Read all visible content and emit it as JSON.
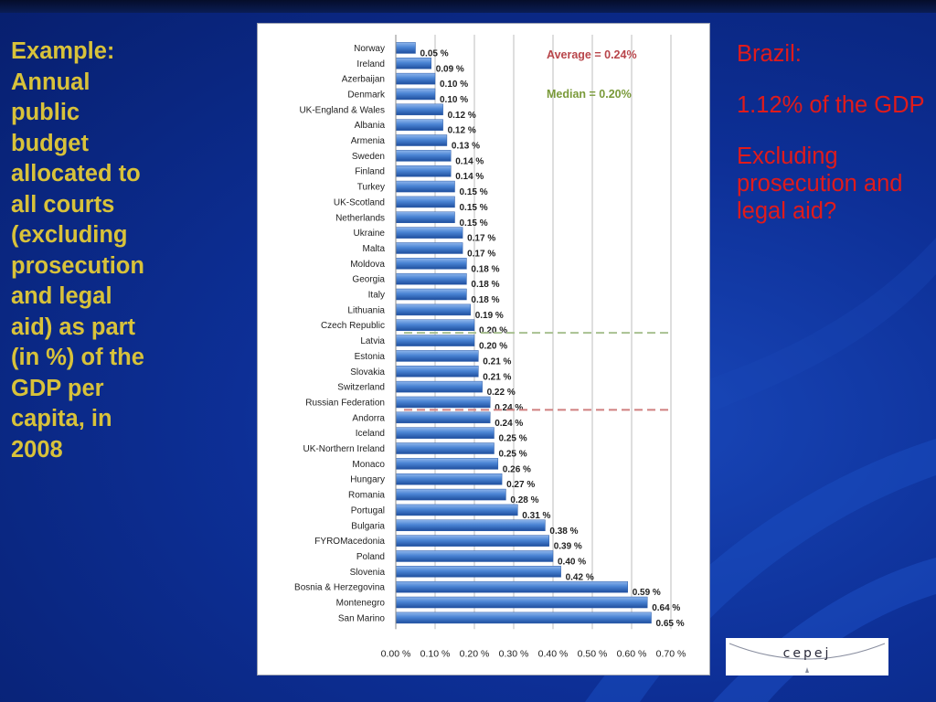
{
  "slide": {
    "left_title": "Example:\nAnnual\npublic\nbudget\nallocated to\nall courts\n(excluding\nprosecution\nand legal\naid) as part\n(in %) of the\nGDP per\ncapita, in\n2008",
    "right_heading": "Brazil:",
    "right_value": "1.12% of the GDP",
    "right_question": "Excluding prosecution and legal aid?",
    "logo_text": "cepej",
    "colors": {
      "background": "#0d2f96",
      "title": "#d8c23a",
      "right_text": "#e01b1b",
      "bar": "#4a84d4",
      "average_line": "#d08080",
      "median_line": "#a8c090"
    }
  },
  "chart_data": {
    "type": "bar",
    "orientation": "horizontal",
    "categories": [
      "Norway",
      "Ireland",
      "Azerbaijan",
      "Denmark",
      "UK-England & Wales",
      "Albania",
      "Armenia",
      "Sweden",
      "Finland",
      "Turkey",
      "UK-Scotland",
      "Netherlands",
      "Ukraine",
      "Malta",
      "Moldova",
      "Georgia",
      "Italy",
      "Lithuania",
      "Czech Republic",
      "Latvia",
      "Estonia",
      "Slovakia",
      "Switzerland",
      "Russian Federation",
      "Andorra",
      "Iceland",
      "UK-Northern Ireland",
      "Monaco",
      "Hungary",
      "Romania",
      "Portugal",
      "Bulgaria",
      "FYROMacedonia",
      "Poland",
      "Slovenia",
      "Bosnia & Herzegovina",
      "Montenegro",
      "San Marino"
    ],
    "values": [
      0.05,
      0.09,
      0.1,
      0.1,
      0.12,
      0.12,
      0.13,
      0.14,
      0.14,
      0.15,
      0.15,
      0.15,
      0.17,
      0.17,
      0.18,
      0.18,
      0.18,
      0.19,
      0.2,
      0.2,
      0.21,
      0.21,
      0.22,
      0.24,
      0.24,
      0.25,
      0.25,
      0.26,
      0.27,
      0.28,
      0.31,
      0.38,
      0.39,
      0.4,
      0.42,
      0.59,
      0.64,
      0.65
    ],
    "value_labels": [
      "0.05 %",
      "0.09 %",
      "0.10 %",
      "0.10 %",
      "0.12 %",
      "0.12 %",
      "0.13 %",
      "0.14 %",
      "0.14 %",
      "0.15 %",
      "0.15 %",
      "0.15 %",
      "0.17 %",
      "0.17 %",
      "0.18 %",
      "0.18 %",
      "0.18 %",
      "0.19 %",
      "0.20 %",
      "0.20 %",
      "0.21 %",
      "0.21 %",
      "0.22 %",
      "0.24 %",
      "0.24 %",
      "0.25 %",
      "0.25 %",
      "0.26 %",
      "0.27 %",
      "0.28 %",
      "0.31 %",
      "0.38 %",
      "0.39 %",
      "0.40 %",
      "0.42 %",
      "0.59 %",
      "0.64 %",
      "0.65 %"
    ],
    "x_ticks": [
      0,
      0.1,
      0.2,
      0.3,
      0.4,
      0.5,
      0.6,
      0.7
    ],
    "x_tick_labels": [
      "0.00 %",
      "0.10 %",
      "0.20 %",
      "0.30 %",
      "0.40 %",
      "0.50 %",
      "0.60 %",
      "0.70 %"
    ],
    "xlim": [
      0,
      0.7
    ],
    "grid": "vertical",
    "title": "",
    "xlabel": "",
    "ylabel": "",
    "annotations": {
      "average_label": "Average = 0.24%",
      "average_value": 0.24,
      "median_label": "Median = 0.20%",
      "median_value": 0.2
    }
  }
}
